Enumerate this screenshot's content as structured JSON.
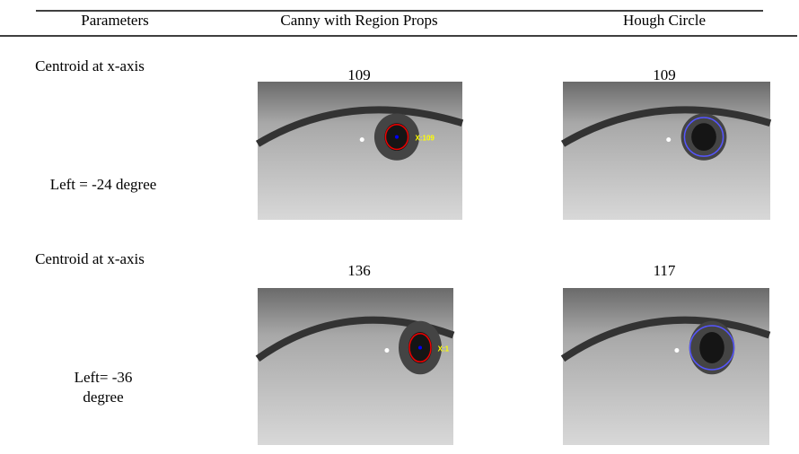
{
  "table": {
    "columns": [
      "Parameters",
      "Canny with Region Props",
      "Hough Circle"
    ],
    "rows": [
      {
        "label": "Centroid at x-axis",
        "canny": "109",
        "hough": "109",
        "angle": [
          "Left = -24 degree"
        ],
        "tag": "X:109"
      },
      {
        "label": "Centroid at x-axis",
        "canny": "136",
        "hough": "117",
        "angle": [
          "Left= -36",
          "degree"
        ],
        "tag": "X:1"
      }
    ]
  }
}
